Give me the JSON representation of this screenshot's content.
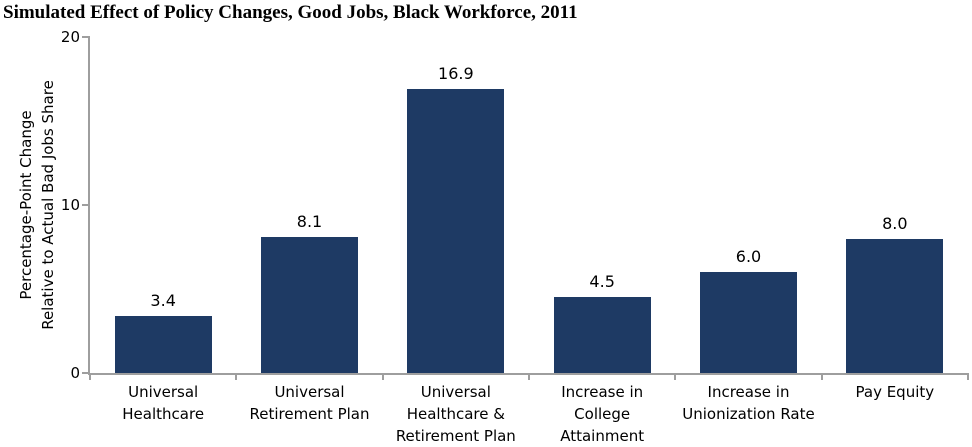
{
  "title": "Simulated Effect of Policy Changes, Good Jobs, Black Workforce, 2011",
  "chart_data": {
    "type": "bar",
    "title": "Simulated Effect of Policy Changes, Good Jobs, Black Workforce, 2011",
    "categories": [
      [
        "Universal",
        "Healthcare"
      ],
      [
        "Universal",
        "Retirement Plan"
      ],
      [
        "Universal",
        "Healthcare &",
        "Retirement Plan"
      ],
      [
        "Increase in",
        "College",
        "Attainment"
      ],
      [
        "Increase in",
        "Unionization Rate"
      ],
      [
        "Pay Equity"
      ]
    ],
    "values": [
      3.4,
      8.1,
      16.9,
      4.5,
      6.0,
      8.0
    ],
    "value_labels": [
      "3.4",
      "8.1",
      "16.9",
      "4.5",
      "6.0",
      "8.0"
    ],
    "xlabel": "",
    "ylabel": "Percentage-Point Change\nRelative to Actual Bad Jobs Share",
    "yticks": [
      0,
      10,
      20
    ],
    "ytick_labels": [
      "0",
      "10",
      "20"
    ],
    "ylim": [
      0,
      20
    ],
    "grid": false,
    "legend": false,
    "bar_color": "#1E3A64",
    "axis_color": "#9E9E9E",
    "text_color": "#000000"
  }
}
